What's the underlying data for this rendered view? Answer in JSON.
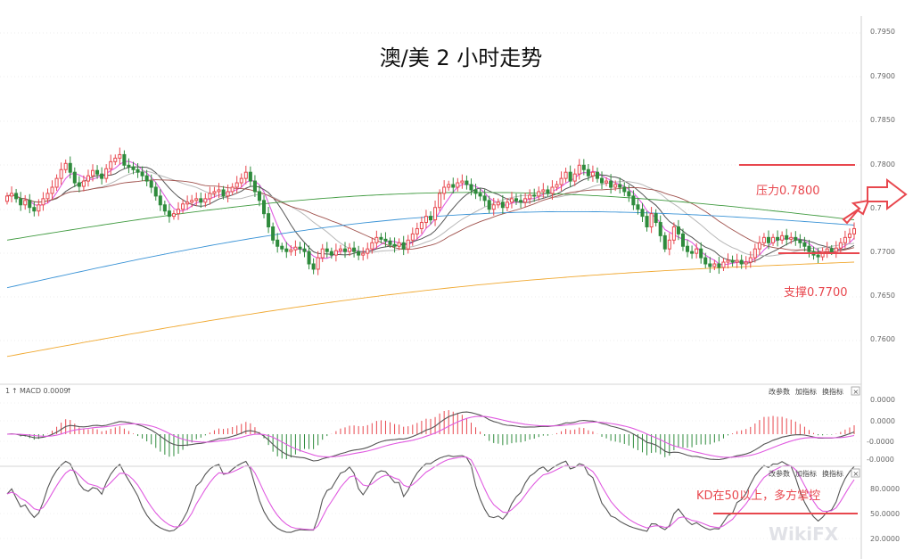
{
  "chart_data": [
    {
      "type": "candlestick",
      "title": "澳/美 2 小时走势",
      "ylim": [
        0.7565,
        0.798
      ],
      "yticks": [
        "0.7950",
        "0.7900",
        "0.7850",
        "0.7800",
        "0.7700",
        "0.7650",
        "0.7600"
      ],
      "partial_tick": "0.7",
      "annotations": {
        "resistance": {
          "label": "压力0.7800",
          "value": 0.78
        },
        "support": {
          "label": "支撑0.7700",
          "value": 0.77
        }
      },
      "series_colors": {
        "up": "#e8474e",
        "down": "#2e8b3c"
      },
      "close": [
        0.7765,
        0.7768,
        0.7762,
        0.7755,
        0.776,
        0.7752,
        0.7748,
        0.7755,
        0.7762,
        0.7768,
        0.7775,
        0.7785,
        0.7795,
        0.7802,
        0.7792,
        0.778,
        0.7776,
        0.7782,
        0.7788,
        0.7794,
        0.779,
        0.7785,
        0.7796,
        0.7804,
        0.7808,
        0.7812,
        0.78,
        0.7798,
        0.7795,
        0.7792,
        0.7788,
        0.7782,
        0.7775,
        0.7765,
        0.7755,
        0.7748,
        0.7742,
        0.7745,
        0.775,
        0.7756,
        0.7758,
        0.776,
        0.7762,
        0.7758,
        0.7762,
        0.7768,
        0.777,
        0.7772,
        0.7765,
        0.777,
        0.7775,
        0.778,
        0.7785,
        0.7792,
        0.7782,
        0.777,
        0.776,
        0.7745,
        0.773,
        0.7715,
        0.7708,
        0.7705,
        0.7702,
        0.7704,
        0.7707,
        0.7705,
        0.7702,
        0.7688,
        0.7682,
        0.7695,
        0.7705,
        0.7702,
        0.7698,
        0.7703,
        0.7705,
        0.7702,
        0.7706,
        0.7702,
        0.7698,
        0.77,
        0.7705,
        0.7712,
        0.7718,
        0.7716,
        0.7714,
        0.771,
        0.7708,
        0.7712,
        0.7705,
        0.7715,
        0.7722,
        0.7728,
        0.7735,
        0.7742,
        0.7738,
        0.7752,
        0.7768,
        0.7775,
        0.7778,
        0.7775,
        0.778,
        0.7782,
        0.7778,
        0.7772,
        0.7768,
        0.7765,
        0.776,
        0.775,
        0.7755,
        0.7758,
        0.7752,
        0.7758,
        0.7762,
        0.776,
        0.7758,
        0.7762,
        0.7766,
        0.7765,
        0.777,
        0.7772,
        0.7768,
        0.7775,
        0.7778,
        0.7785,
        0.7792,
        0.7782,
        0.779,
        0.78,
        0.7795,
        0.7788,
        0.7792,
        0.7785,
        0.778,
        0.7782,
        0.7775,
        0.7778,
        0.7775,
        0.777,
        0.7765,
        0.7755,
        0.775,
        0.7742,
        0.773,
        0.7745,
        0.7735,
        0.772,
        0.7705,
        0.7715,
        0.773,
        0.7722,
        0.7708,
        0.7702,
        0.77,
        0.7705,
        0.7695,
        0.7688,
        0.7685,
        0.7688,
        0.7684,
        0.769,
        0.7692,
        0.769,
        0.7692,
        0.7688,
        0.769,
        0.7695,
        0.7705,
        0.7712,
        0.7718,
        0.7712,
        0.7718,
        0.7715,
        0.772,
        0.7716,
        0.7718,
        0.7715,
        0.7712,
        0.7708,
        0.7702,
        0.7698,
        0.7696,
        0.7702,
        0.7705,
        0.7702,
        0.7706,
        0.7712,
        0.7718,
        0.7722,
        0.7728
      ]
    },
    {
      "type": "macd",
      "label": "MACD 0.0009",
      "yticks": [
        "0.0000",
        "0.0000",
        "-0.0000",
        "-0.0000"
      ],
      "buttons": [
        "改参数",
        "加指标",
        "换指标"
      ]
    },
    {
      "type": "kd",
      "yticks": [
        "80.0000",
        "50.0000",
        "20.0000"
      ],
      "level": 50,
      "annotation": "KD在50以上，多方掌控",
      "buttons": [
        "改参数",
        "加指标",
        "换指标"
      ]
    }
  ],
  "ui": {
    "close_glyph": "×",
    "watermark": "WikiFX",
    "marker_up": "↑",
    "marker_left": "1",
    "marker_small": "1"
  }
}
